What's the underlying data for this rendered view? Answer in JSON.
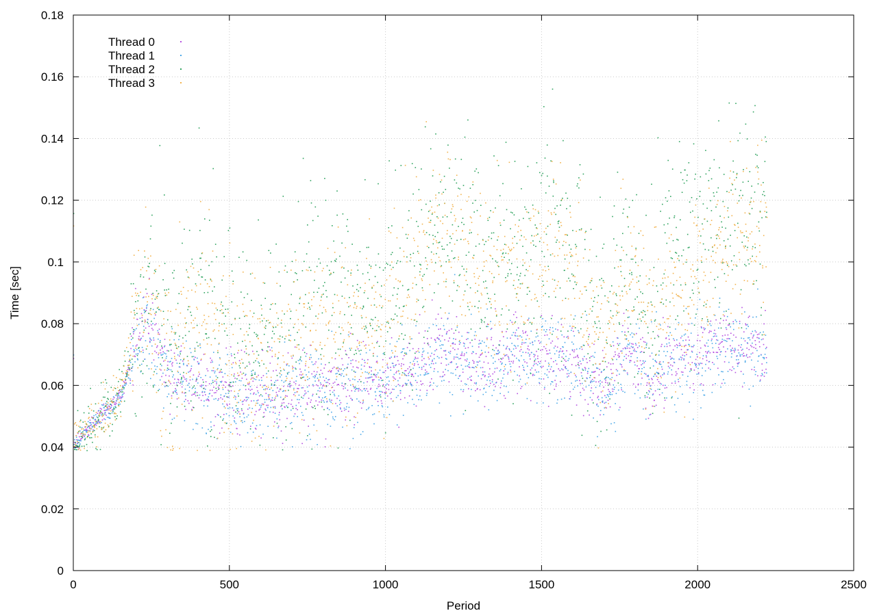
{
  "chart_data": {
    "type": "scatter",
    "title": "",
    "xlabel": "Period",
    "ylabel": "Time [sec]",
    "xlim": [
      0,
      2500
    ],
    "ylim": [
      0,
      0.18
    ],
    "x_ticks": [
      0,
      500,
      1000,
      1500,
      2000,
      2500
    ],
    "y_ticks": [
      0,
      0.02,
      0.04,
      0.06,
      0.08,
      0.1,
      0.12,
      0.14,
      0.16,
      0.18
    ],
    "x_tick_labels": [
      "0",
      "500",
      "1000",
      "1500",
      "2000",
      "2500"
    ],
    "y_tick_labels": [
      "0",
      "0.02",
      "0.04",
      "0.06",
      "0.08",
      "0.1",
      "0.12",
      "0.14",
      "0.16",
      "0.18"
    ],
    "grid": true,
    "legend_position": "top-left",
    "series": [
      {
        "name": "Thread 0",
        "color": "#b44fe0",
        "trend": [
          [
            0,
            0.041
          ],
          [
            50,
            0.047
          ],
          [
            100,
            0.052
          ],
          [
            150,
            0.057
          ],
          [
            200,
            0.075
          ],
          [
            240,
            0.082
          ],
          [
            300,
            0.064
          ],
          [
            400,
            0.061
          ],
          [
            500,
            0.058
          ],
          [
            600,
            0.056
          ],
          [
            700,
            0.06
          ],
          [
            800,
            0.06
          ],
          [
            900,
            0.061
          ],
          [
            1000,
            0.062
          ],
          [
            1100,
            0.066
          ],
          [
            1150,
            0.07
          ],
          [
            1200,
            0.072
          ],
          [
            1300,
            0.066
          ],
          [
            1400,
            0.069
          ],
          [
            1500,
            0.07
          ],
          [
            1600,
            0.069
          ],
          [
            1660,
            0.062
          ],
          [
            1680,
            0.059
          ],
          [
            1720,
            0.061
          ],
          [
            1760,
            0.071
          ],
          [
            1800,
            0.072
          ],
          [
            1840,
            0.062
          ],
          [
            1880,
            0.067
          ],
          [
            1900,
            0.068
          ],
          [
            2000,
            0.071
          ],
          [
            2100,
            0.073
          ],
          [
            2220,
            0.073
          ]
        ],
        "spread": 0.006
      },
      {
        "name": "Thread 1",
        "color": "#4aa8e8",
        "trend": [
          [
            0,
            0.041
          ],
          [
            50,
            0.047
          ],
          [
            100,
            0.052
          ],
          [
            150,
            0.056
          ],
          [
            200,
            0.074
          ],
          [
            240,
            0.08
          ],
          [
            300,
            0.062
          ],
          [
            400,
            0.06
          ],
          [
            500,
            0.056
          ],
          [
            600,
            0.055
          ],
          [
            700,
            0.059
          ],
          [
            800,
            0.059
          ],
          [
            900,
            0.06
          ],
          [
            1000,
            0.061
          ],
          [
            1100,
            0.065
          ],
          [
            1150,
            0.069
          ],
          [
            1200,
            0.071
          ],
          [
            1300,
            0.065
          ],
          [
            1400,
            0.068
          ],
          [
            1500,
            0.069
          ],
          [
            1600,
            0.068
          ],
          [
            1660,
            0.061
          ],
          [
            1680,
            0.058
          ],
          [
            1720,
            0.06
          ],
          [
            1760,
            0.07
          ],
          [
            1800,
            0.071
          ],
          [
            1840,
            0.06
          ],
          [
            1880,
            0.066
          ],
          [
            1900,
            0.067
          ],
          [
            2000,
            0.07
          ],
          [
            2100,
            0.072
          ],
          [
            2220,
            0.072
          ]
        ],
        "spread": 0.007
      },
      {
        "name": "Thread 2",
        "color": "#2fa35f",
        "trend": [
          [
            0,
            0.041
          ],
          [
            50,
            0.047
          ],
          [
            100,
            0.052
          ],
          [
            150,
            0.057
          ],
          [
            200,
            0.08
          ],
          [
            240,
            0.09
          ],
          [
            300,
            0.072
          ],
          [
            400,
            0.088
          ],
          [
            500,
            0.075
          ],
          [
            600,
            0.072
          ],
          [
            700,
            0.08
          ],
          [
            800,
            0.086
          ],
          [
            900,
            0.085
          ],
          [
            1000,
            0.09
          ],
          [
            1100,
            0.1
          ],
          [
            1150,
            0.11
          ],
          [
            1200,
            0.108
          ],
          [
            1300,
            0.1
          ],
          [
            1400,
            0.1
          ],
          [
            1500,
            0.11
          ],
          [
            1600,
            0.105
          ],
          [
            1660,
            0.082
          ],
          [
            1700,
            0.076
          ],
          [
            1760,
            0.1
          ],
          [
            1800,
            0.095
          ],
          [
            1840,
            0.078
          ],
          [
            1900,
            0.095
          ],
          [
            2000,
            0.11
          ],
          [
            2100,
            0.11
          ],
          [
            2220,
            0.115
          ]
        ],
        "spread": 0.018
      },
      {
        "name": "Thread 3",
        "color": "#f2b24c",
        "trend": [
          [
            0,
            0.041
          ],
          [
            50,
            0.047
          ],
          [
            100,
            0.052
          ],
          [
            150,
            0.058
          ],
          [
            200,
            0.078
          ],
          [
            240,
            0.088
          ],
          [
            300,
            0.07
          ],
          [
            400,
            0.085
          ],
          [
            500,
            0.072
          ],
          [
            600,
            0.066
          ],
          [
            700,
            0.074
          ],
          [
            800,
            0.078
          ],
          [
            900,
            0.077
          ],
          [
            1000,
            0.082
          ],
          [
            1100,
            0.096
          ],
          [
            1150,
            0.108
          ],
          [
            1200,
            0.105
          ],
          [
            1300,
            0.1
          ],
          [
            1400,
            0.097
          ],
          [
            1500,
            0.098
          ],
          [
            1600,
            0.1
          ],
          [
            1660,
            0.08
          ],
          [
            1700,
            0.075
          ],
          [
            1760,
            0.09
          ],
          [
            1800,
            0.093
          ],
          [
            1840,
            0.078
          ],
          [
            1900,
            0.088
          ],
          [
            2000,
            0.092
          ],
          [
            2100,
            0.11
          ],
          [
            2220,
            0.112
          ]
        ],
        "spread": 0.014
      }
    ],
    "point_range": [
      0,
      2220
    ],
    "points_per_series": 1400
  }
}
